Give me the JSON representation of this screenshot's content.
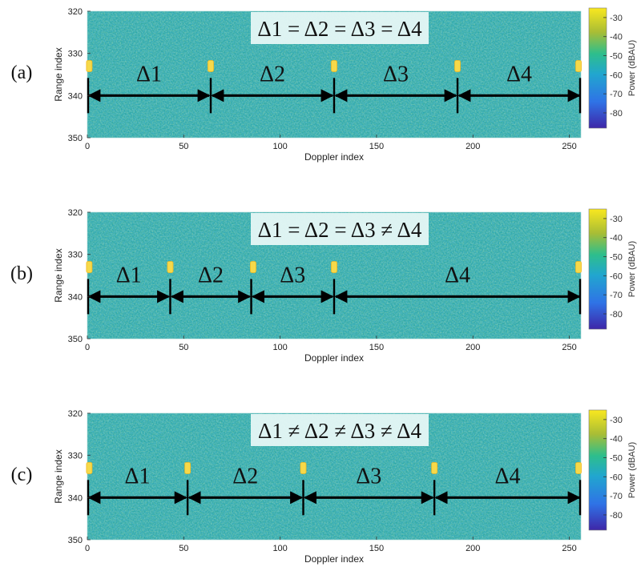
{
  "colors": {
    "background": "#ffffff",
    "noise_mid": "#2ca7a6",
    "target": "#f6d94a",
    "arrow": "#000000",
    "eq_box": "#e6f7f5"
  },
  "chart_data": [
    {
      "type": "heatmap",
      "panel_label": "(a)",
      "equation": "Δ1 = Δ2 = Δ3 = Δ4",
      "xlabel": "Doppler index",
      "ylabel": "Range index",
      "xlim": [
        0,
        256
      ],
      "ylim": [
        350,
        320
      ],
      "xticks": [
        0,
        50,
        100,
        150,
        200,
        250
      ],
      "yticks": [
        320,
        330,
        340,
        350
      ],
      "colorbar": {
        "label": "Power (dBAU)",
        "range": [
          -88,
          -25
        ],
        "ticks": [
          -30,
          -40,
          -50,
          -60,
          -70,
          -80
        ]
      },
      "target_range_index": 333,
      "targets_doppler": [
        1,
        64,
        128,
        192,
        256
      ],
      "arrow_range_index": 340,
      "markers_doppler": [
        0,
        64,
        128,
        192,
        256
      ],
      "segments": [
        {
          "label": "Δ1",
          "from": 0,
          "to": 64
        },
        {
          "label": "Δ2",
          "from": 64,
          "to": 128
        },
        {
          "label": "Δ3",
          "from": 128,
          "to": 192
        },
        {
          "label": "Δ4",
          "from": 192,
          "to": 256
        }
      ]
    },
    {
      "type": "heatmap",
      "panel_label": "(b)",
      "equation": "Δ1 = Δ2 = Δ3 ≠ Δ4",
      "xlabel": "Doppler index",
      "ylabel": "Range index",
      "xlim": [
        0,
        256
      ],
      "ylim": [
        350,
        320
      ],
      "xticks": [
        0,
        50,
        100,
        150,
        200,
        250
      ],
      "yticks": [
        320,
        330,
        340,
        350
      ],
      "colorbar": {
        "label": "Power (dBAU)",
        "range": [
          -88,
          -25
        ],
        "ticks": [
          -30,
          -40,
          -50,
          -60,
          -70,
          -80
        ]
      },
      "target_range_index": 333,
      "targets_doppler": [
        1,
        43,
        86,
        128,
        256
      ],
      "arrow_range_index": 340,
      "markers_doppler": [
        0,
        43,
        85,
        128,
        256
      ],
      "segments": [
        {
          "label": "Δ1",
          "from": 0,
          "to": 43
        },
        {
          "label": "Δ2",
          "from": 43,
          "to": 85
        },
        {
          "label": "Δ3",
          "from": 85,
          "to": 128
        },
        {
          "label": "Δ4",
          "from": 128,
          "to": 256
        }
      ]
    },
    {
      "type": "heatmap",
      "panel_label": "(c)",
      "equation": "Δ1 ≠ Δ2 ≠ Δ3 ≠ Δ4",
      "xlabel": "Doppler index",
      "ylabel": "Range index",
      "xlim": [
        0,
        256
      ],
      "ylim": [
        350,
        320
      ],
      "xticks": [
        0,
        50,
        100,
        150,
        200,
        250
      ],
      "yticks": [
        320,
        330,
        340,
        350
      ],
      "colorbar": {
        "label": "Power (dBAU)",
        "range": [
          -88,
          -25
        ],
        "ticks": [
          -30,
          -40,
          -50,
          -60,
          -70,
          -80
        ]
      },
      "target_range_index": 333,
      "targets_doppler": [
        1,
        52,
        112,
        180,
        256
      ],
      "arrow_range_index": 340,
      "markers_doppler": [
        0,
        52,
        112,
        180,
        256
      ],
      "segments": [
        {
          "label": "Δ1",
          "from": 0,
          "to": 52
        },
        {
          "label": "Δ2",
          "from": 52,
          "to": 112
        },
        {
          "label": "Δ3",
          "from": 112,
          "to": 180
        },
        {
          "label": "Δ4",
          "from": 180,
          "to": 256
        }
      ]
    }
  ]
}
